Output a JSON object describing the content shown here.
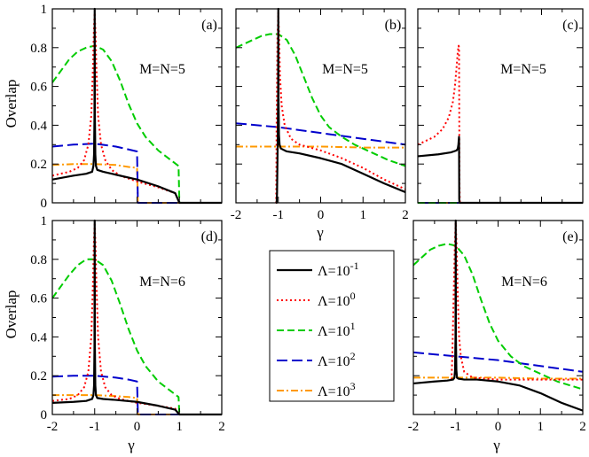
{
  "figure": {
    "ylabel": "Overlap",
    "xlabel": "γ",
    "x_ticks": [
      "-2",
      "-1",
      "0",
      "1",
      "2"
    ],
    "y_ticks": [
      "0",
      "0.2",
      "0.4",
      "0.6",
      "0.8",
      "1"
    ]
  },
  "legend": {
    "title_prefix": "Λ=10",
    "entries": [
      {
        "exp": "-1",
        "color": "#000000",
        "style": "solid"
      },
      {
        "exp": "0",
        "color": "#ff0000",
        "style": "dotted"
      },
      {
        "exp": "1",
        "color": "#00cc00",
        "style": "dashed"
      },
      {
        "exp": "2",
        "color": "#0000cc",
        "style": "longdash"
      },
      {
        "exp": "3",
        "color": "#ff9900",
        "style": "dashdot"
      }
    ]
  },
  "chart_data": [
    {
      "type": "line",
      "panel": "a",
      "tag": "(a)",
      "label": "M=N=5",
      "xlim": [
        -2,
        2
      ],
      "ylim": [
        0,
        1
      ],
      "series": [
        {
          "name": "Λ=10^-1",
          "x": [
            -2,
            -1.5,
            -1.2,
            -1.06,
            -1.03,
            -1.015,
            -1.005,
            -1.0,
            -0.995,
            -0.985,
            -0.97,
            -0.94,
            -0.8,
            -0.5,
            0,
            0.5,
            0.9,
            1.0,
            1.02,
            2
          ],
          "y": [
            0.12,
            0.14,
            0.15,
            0.16,
            0.19,
            0.25,
            0.45,
            1.0,
            0.45,
            0.25,
            0.19,
            0.17,
            0.16,
            0.145,
            0.12,
            0.085,
            0.05,
            0.0,
            0.0,
            0.0
          ]
        },
        {
          "name": "Λ=10^0",
          "x": [
            -2,
            -1.6,
            -1.4,
            -1.25,
            -1.15,
            -1.08,
            -1.04,
            -1.02,
            -1.0,
            -0.98,
            -0.96,
            -0.92,
            -0.85,
            -0.75,
            -0.6,
            -0.4,
            0,
            0.5,
            0.9,
            1.0,
            1.02,
            2
          ],
          "y": [
            0.14,
            0.16,
            0.18,
            0.22,
            0.3,
            0.45,
            0.7,
            0.88,
            0.98,
            0.88,
            0.7,
            0.45,
            0.3,
            0.22,
            0.17,
            0.14,
            0.11,
            0.08,
            0.05,
            0.0,
            0.0,
            0.0
          ]
        },
        {
          "name": "Λ=10^1",
          "x": [
            -2,
            -1.8,
            -1.6,
            -1.4,
            -1.2,
            -1.0,
            -0.8,
            -0.6,
            -0.4,
            -0.2,
            0,
            0.2,
            0.5,
            0.8,
            0.98,
            1.0,
            1.02,
            2
          ],
          "y": [
            0.62,
            0.68,
            0.74,
            0.78,
            0.8,
            0.81,
            0.79,
            0.73,
            0.63,
            0.51,
            0.41,
            0.34,
            0.27,
            0.22,
            0.19,
            0.0,
            0.0,
            0.0
          ]
        },
        {
          "name": "Λ=10^2",
          "x": [
            -2,
            -1.5,
            -1.0,
            -0.5,
            -0.2,
            0,
            0.02,
            0.04,
            2
          ],
          "y": [
            0.29,
            0.3,
            0.305,
            0.29,
            0.275,
            0.265,
            0.0,
            0.0,
            0.0
          ]
        },
        {
          "name": "Λ=10^3",
          "x": [
            -2,
            -1.5,
            -1.0,
            -0.5,
            -0.2,
            0,
            0.02,
            0.04,
            2
          ],
          "y": [
            0.195,
            0.2,
            0.2,
            0.195,
            0.185,
            0.18,
            0.0,
            0.0,
            0.0
          ]
        }
      ]
    },
    {
      "type": "line",
      "panel": "b",
      "tag": "(b)",
      "label": "M=N=5",
      "xlim": [
        -2,
        2
      ],
      "ylim": [
        0,
        1
      ],
      "series": [
        {
          "name": "Λ=10^-1",
          "x": [
            -1.05,
            -1.04,
            -1.03,
            -1.015,
            -1.005,
            -1.0,
            -0.995,
            -0.985,
            -0.97,
            -0.94,
            -0.8,
            -0.5,
            0,
            0.5,
            1.0,
            1.5,
            2
          ],
          "y": [
            0.0,
            0.0,
            0.05,
            0.3,
            0.55,
            1.0,
            0.55,
            0.35,
            0.3,
            0.28,
            0.265,
            0.255,
            0.23,
            0.2,
            0.15,
            0.1,
            0.055
          ]
        },
        {
          "name": "Λ=10^0",
          "x": [
            -1.06,
            -1.05,
            -1.04,
            -1.02,
            -1.0,
            -0.98,
            -0.96,
            -0.92,
            -0.85,
            -0.7,
            -0.5,
            0,
            0.5,
            1.0,
            1.5,
            2
          ],
          "y": [
            0.0,
            0.0,
            0.4,
            0.85,
            0.98,
            0.85,
            0.65,
            0.5,
            0.4,
            0.33,
            0.3,
            0.27,
            0.23,
            0.18,
            0.12,
            0.07
          ]
        },
        {
          "name": "Λ=10^1",
          "x": [
            -2,
            -1.8,
            -1.6,
            -1.4,
            -1.2,
            -1.0,
            -0.8,
            -0.6,
            -0.4,
            -0.2,
            0,
            0.2,
            0.5,
            0.8,
            1.2,
            1.6,
            2
          ],
          "y": [
            0.8,
            0.82,
            0.84,
            0.86,
            0.87,
            0.87,
            0.84,
            0.76,
            0.65,
            0.54,
            0.45,
            0.39,
            0.34,
            0.3,
            0.26,
            0.22,
            0.19
          ]
        },
        {
          "name": "Λ=10^2",
          "x": [
            -2,
            -1,
            0,
            1,
            2
          ],
          "y": [
            0.41,
            0.39,
            0.36,
            0.33,
            0.3
          ]
        },
        {
          "name": "Λ=10^3",
          "x": [
            -2,
            -1,
            0,
            1,
            2
          ],
          "y": [
            0.29,
            0.29,
            0.29,
            0.285,
            0.285
          ]
        }
      ]
    },
    {
      "type": "line",
      "panel": "c",
      "tag": "(c)",
      "label": "M=N=5",
      "xlim": [
        -2,
        2
      ],
      "ylim": [
        0,
        1
      ],
      "series": [
        {
          "name": "Λ=10^-1",
          "x": [
            -2,
            -1.5,
            -1.2,
            -1.06,
            -1.03,
            -1.015,
            -1.005,
            -1.0,
            -0.995,
            -0.99,
            2
          ],
          "y": [
            0.24,
            0.25,
            0.26,
            0.27,
            0.28,
            0.3,
            0.33,
            0.34,
            0.02,
            0.0,
            0.0
          ]
        },
        {
          "name": "Λ=10^0",
          "x": [
            -2,
            -1.6,
            -1.4,
            -1.25,
            -1.15,
            -1.1,
            -1.06,
            -1.03,
            -1.01,
            -1.0,
            -0.99,
            -0.98,
            2
          ],
          "y": [
            0.3,
            0.34,
            0.38,
            0.44,
            0.52,
            0.6,
            0.7,
            0.78,
            0.81,
            0.8,
            0.1,
            0.0,
            0.0
          ]
        },
        {
          "name": "Λ=10^1",
          "x": [
            -2,
            2
          ],
          "y": [
            0.0,
            0.0
          ]
        },
        {
          "name": "Λ=10^2",
          "x": [
            -2,
            2
          ],
          "y": [
            0.0,
            0.0
          ]
        },
        {
          "name": "Λ=10^3",
          "x": [
            -2,
            2
          ],
          "y": [
            0.0,
            0.0
          ]
        }
      ]
    },
    {
      "type": "line",
      "panel": "d",
      "tag": "(d)",
      "label": "M=N=6",
      "xlim": [
        -2,
        2
      ],
      "ylim": [
        0,
        1
      ],
      "series": [
        {
          "name": "Λ=10^-1",
          "x": [
            -2,
            -1.5,
            -1.2,
            -1.06,
            -1.03,
            -1.015,
            -1.005,
            -1.0,
            -0.995,
            -0.985,
            -0.97,
            -0.94,
            -0.8,
            -0.5,
            0,
            0.5,
            0.9,
            1.0,
            1.02,
            2
          ],
          "y": [
            0.06,
            0.065,
            0.07,
            0.08,
            0.1,
            0.15,
            0.35,
            1.0,
            0.35,
            0.15,
            0.1,
            0.085,
            0.08,
            0.075,
            0.065,
            0.045,
            0.025,
            0.0,
            0.0,
            0.0
          ]
        },
        {
          "name": "Λ=10^0",
          "x": [
            -2,
            -1.6,
            -1.4,
            -1.25,
            -1.15,
            -1.08,
            -1.04,
            -1.02,
            -1.0,
            -0.98,
            -0.96,
            -0.92,
            -0.85,
            -0.75,
            -0.6,
            -0.4,
            0,
            0.5,
            0.9,
            1.0,
            1.02,
            2
          ],
          "y": [
            0.07,
            0.08,
            0.1,
            0.14,
            0.22,
            0.4,
            0.68,
            0.88,
            0.98,
            0.88,
            0.68,
            0.4,
            0.22,
            0.14,
            0.1,
            0.08,
            0.06,
            0.045,
            0.03,
            0.0,
            0.0,
            0.0
          ]
        },
        {
          "name": "Λ=10^1",
          "x": [
            -2,
            -1.8,
            -1.6,
            -1.4,
            -1.2,
            -1.0,
            -0.8,
            -0.6,
            -0.4,
            -0.2,
            0,
            0.2,
            0.5,
            0.8,
            0.98,
            1.0,
            1.02,
            2
          ],
          "y": [
            0.6,
            0.66,
            0.72,
            0.77,
            0.8,
            0.8,
            0.77,
            0.69,
            0.57,
            0.44,
            0.33,
            0.25,
            0.17,
            0.12,
            0.09,
            0.0,
            0.0,
            0.0
          ]
        },
        {
          "name": "Λ=10^2",
          "x": [
            -2,
            -1.5,
            -1.0,
            -0.5,
            -0.2,
            0,
            0.02,
            0.04,
            2
          ],
          "y": [
            0.195,
            0.2,
            0.2,
            0.19,
            0.18,
            0.17,
            0.0,
            0.0,
            0.0
          ]
        },
        {
          "name": "Λ=10^3",
          "x": [
            -2,
            -1.5,
            -1.0,
            -0.5,
            -0.2,
            0,
            0.02,
            0.04,
            2
          ],
          "y": [
            0.1,
            0.1,
            0.1,
            0.095,
            0.09,
            0.085,
            0.0,
            0.0,
            0.0
          ]
        }
      ]
    },
    {
      "type": "line",
      "panel": "e",
      "tag": "(e)",
      "label": "M=N=6",
      "xlim": [
        -2,
        2
      ],
      "ylim": [
        0,
        1
      ],
      "series": [
        {
          "name": "Λ=10^-1",
          "x": [
            -2,
            -1.5,
            -1.2,
            -1.06,
            -1.03,
            -1.015,
            -1.005,
            -1.0,
            -0.995,
            -0.985,
            -0.97,
            -0.94,
            -0.8,
            -0.5,
            0,
            0.5,
            1.0,
            1.5,
            2
          ],
          "y": [
            0.16,
            0.17,
            0.175,
            0.18,
            0.19,
            0.23,
            0.4,
            1.0,
            0.4,
            0.23,
            0.19,
            0.185,
            0.18,
            0.18,
            0.17,
            0.15,
            0.11,
            0.06,
            0.02
          ]
        },
        {
          "name": "Λ=10^0",
          "x": [
            -1.1,
            -1.08,
            -1.05,
            -1.02,
            -1.0,
            -0.98,
            -0.95,
            -0.92,
            -0.88,
            -0.8,
            -0.6,
            0,
            1.0,
            2
          ],
          "y": [
            0.18,
            0.3,
            0.6,
            0.88,
            0.99,
            0.88,
            0.6,
            0.4,
            0.3,
            0.22,
            0.19,
            0.18,
            0.18,
            0.18
          ]
        },
        {
          "name": "Λ=10^1",
          "x": [
            -2,
            -1.8,
            -1.6,
            -1.4,
            -1.2,
            -1.0,
            -0.8,
            -0.6,
            -0.4,
            -0.2,
            0,
            0.3,
            0.6,
            1.0,
            1.4,
            1.7,
            2
          ],
          "y": [
            0.77,
            0.81,
            0.85,
            0.87,
            0.88,
            0.87,
            0.82,
            0.72,
            0.59,
            0.47,
            0.38,
            0.3,
            0.25,
            0.21,
            0.17,
            0.15,
            0.13
          ]
        },
        {
          "name": "Λ=10^2",
          "x": [
            -2,
            -1,
            0,
            1,
            2
          ],
          "y": [
            0.32,
            0.3,
            0.28,
            0.25,
            0.22
          ]
        },
        {
          "name": "Λ=10^3",
          "x": [
            -2,
            -1,
            0,
            1,
            2
          ],
          "y": [
            0.19,
            0.19,
            0.19,
            0.185,
            0.185
          ]
        }
      ]
    }
  ]
}
